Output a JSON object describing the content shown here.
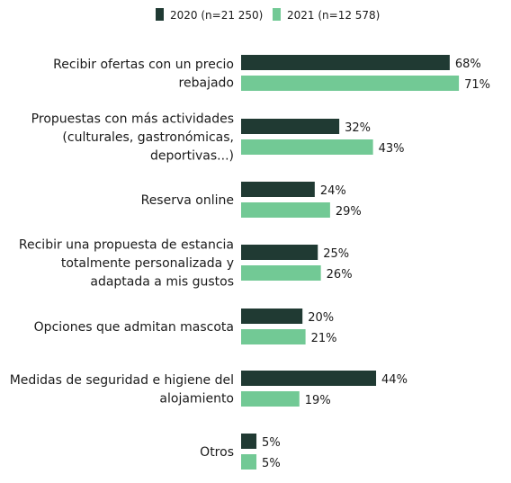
{
  "chart_data": {
    "type": "bar",
    "orientation": "horizontal",
    "legend_position": "top",
    "grid": false,
    "xlim": [
      0,
      100
    ],
    "categories": [
      [
        "Recibir ofertas con un precio",
        "rebajado"
      ],
      [
        "Propuestas con más actividades",
        "(culturales, gastronómicas,",
        "deportivas...)"
      ],
      [
        "Reserva online"
      ],
      [
        "Recibir una propuesta de estancia",
        "totalmente personalizada y",
        "adaptada a mis gustos"
      ],
      [
        "Opciones que admitan mascota"
      ],
      [
        "Medidas de seguridad e higiene del",
        "alojamiento"
      ],
      [
        "Otros"
      ]
    ],
    "series": [
      {
        "name": "2020 (n=21 250)",
        "color": "#203a33",
        "values": [
          68,
          32,
          24,
          25,
          20,
          44,
          5
        ],
        "labels": [
          "68%",
          "32%",
          "24%",
          "25%",
          "20%",
          "44%",
          "5%"
        ]
      },
      {
        "name": "2021 (n=12 578)",
        "color": "#72c995",
        "values": [
          71,
          43,
          29,
          26,
          21,
          19,
          5
        ],
        "labels": [
          "71%",
          "43%",
          "29%",
          "26%",
          "21%",
          "19%",
          "5%"
        ]
      }
    ]
  }
}
